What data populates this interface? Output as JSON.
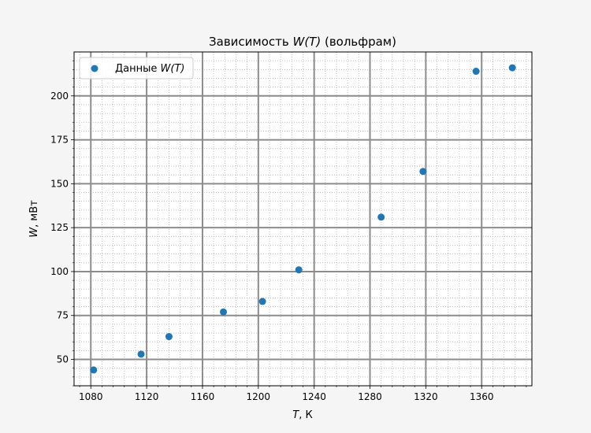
{
  "chart_data": {
    "type": "scatter",
    "title_prefix": "Зависимость ",
    "title_math": "W(T)",
    "title_suffix": " (вольфрам)",
    "xlabel_var": "T",
    "xlabel_unit": ", К",
    "ylabel_var": "W",
    "ylabel_unit": ", мВт",
    "xlim": [
      1068,
      1396
    ],
    "ylim": [
      35,
      225
    ],
    "x_ticks": [
      1080,
      1120,
      1160,
      1200,
      1240,
      1280,
      1320,
      1360
    ],
    "x_tick_labels": [
      "1080",
      "1120",
      "1160",
      "1200",
      "1240",
      "1280",
      "1320",
      "1360"
    ],
    "y_ticks": [
      50,
      75,
      100,
      125,
      150,
      175,
      200
    ],
    "y_tick_labels": [
      "50",
      "75",
      "100",
      "125",
      "150",
      "175",
      "200"
    ],
    "grid": true,
    "minor_grid": true,
    "legend_position": "top-left",
    "series": [
      {
        "name_prefix": "Данные ",
        "name_math": "W(T)",
        "color": "#1f77b4",
        "points": [
          {
            "x": 1082,
            "y": 44
          },
          {
            "x": 1116,
            "y": 53
          },
          {
            "x": 1136,
            "y": 63
          },
          {
            "x": 1175,
            "y": 77
          },
          {
            "x": 1203,
            "y": 83
          },
          {
            "x": 1229,
            "y": 101
          },
          {
            "x": 1288,
            "y": 131
          },
          {
            "x": 1318,
            "y": 157
          },
          {
            "x": 1356,
            "y": 214
          },
          {
            "x": 1382,
            "y": 216
          }
        ]
      }
    ]
  }
}
